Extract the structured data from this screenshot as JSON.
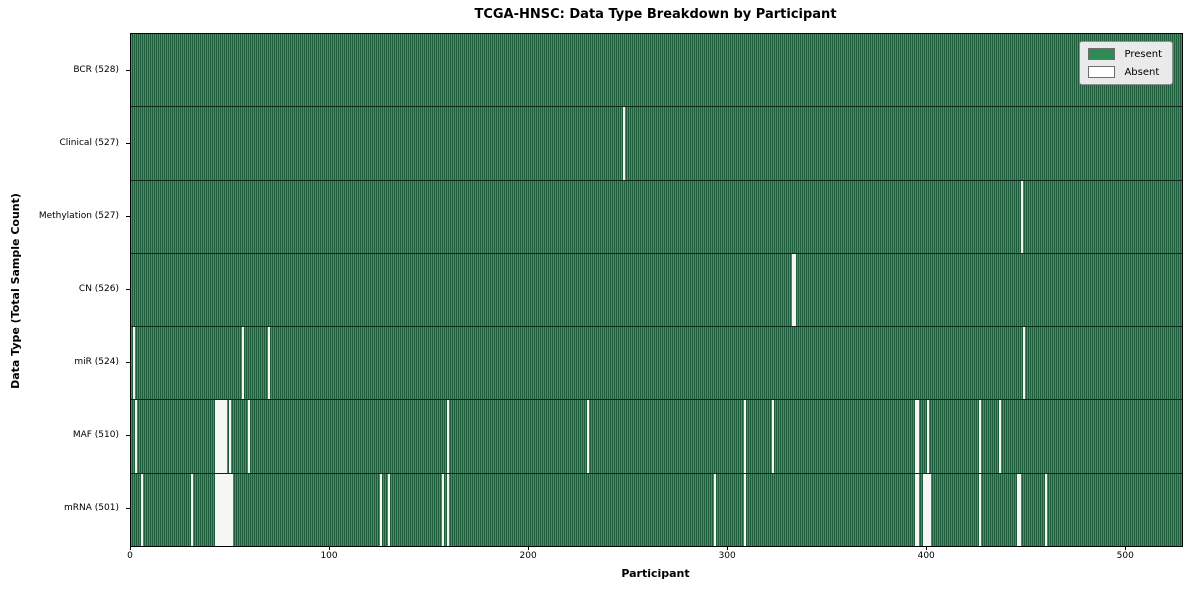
{
  "chart_data": {
    "type": "heatmap",
    "title": "TCGA-HNSC: Data Type Breakdown by Participant",
    "xlabel": "Participant",
    "ylabel": "Data Type (Total Sample Count)",
    "n_participants": 528,
    "x_domain": [
      0,
      528
    ],
    "xticks": [
      0,
      100,
      200,
      300,
      400,
      500
    ],
    "grid": false,
    "legend_position": "upper right",
    "legend": [
      {
        "label": "Present",
        "color": "#2e8b57"
      },
      {
        "label": "Absent",
        "color": "#ffffff"
      }
    ],
    "colors": {
      "present_fill": "#389463",
      "present_edge": "#1f5e3d",
      "absent_fill": "#f6f6f4",
      "row_separator": "#10271a"
    },
    "rows": [
      {
        "name": "BCR",
        "label": "BCR (528)",
        "present_count": 528,
        "absent_participants": []
      },
      {
        "name": "Clinical",
        "label": "Clinical (527)",
        "present_count": 527,
        "absent_participants": [
          247
        ]
      },
      {
        "name": "Methylation",
        "label": "Methylation (527)",
        "present_count": 527,
        "absent_participants": [
          447
        ]
      },
      {
        "name": "CN",
        "label": "CN (526)",
        "present_count": 526,
        "absent_participants": [
          332,
          333
        ]
      },
      {
        "name": "miR",
        "label": "miR (524)",
        "present_count": 524,
        "absent_participants": [
          1,
          56,
          69,
          448
        ]
      },
      {
        "name": "MAF",
        "label": "MAF (510)",
        "present_count": 510,
        "absent_participants": [
          2,
          42,
          43,
          44,
          45,
          46,
          47,
          49,
          59,
          159,
          229,
          308,
          322,
          394,
          395,
          400,
          426,
          436
        ]
      },
      {
        "name": "mRNA",
        "label": "mRNA (501)",
        "present_count": 501,
        "absent_participants": [
          5,
          30,
          42,
          43,
          44,
          45,
          46,
          47,
          48,
          49,
          50,
          125,
          129,
          156,
          159,
          293,
          308,
          394,
          395,
          398,
          399,
          400,
          401,
          426,
          445,
          446,
          459
        ]
      }
    ]
  }
}
